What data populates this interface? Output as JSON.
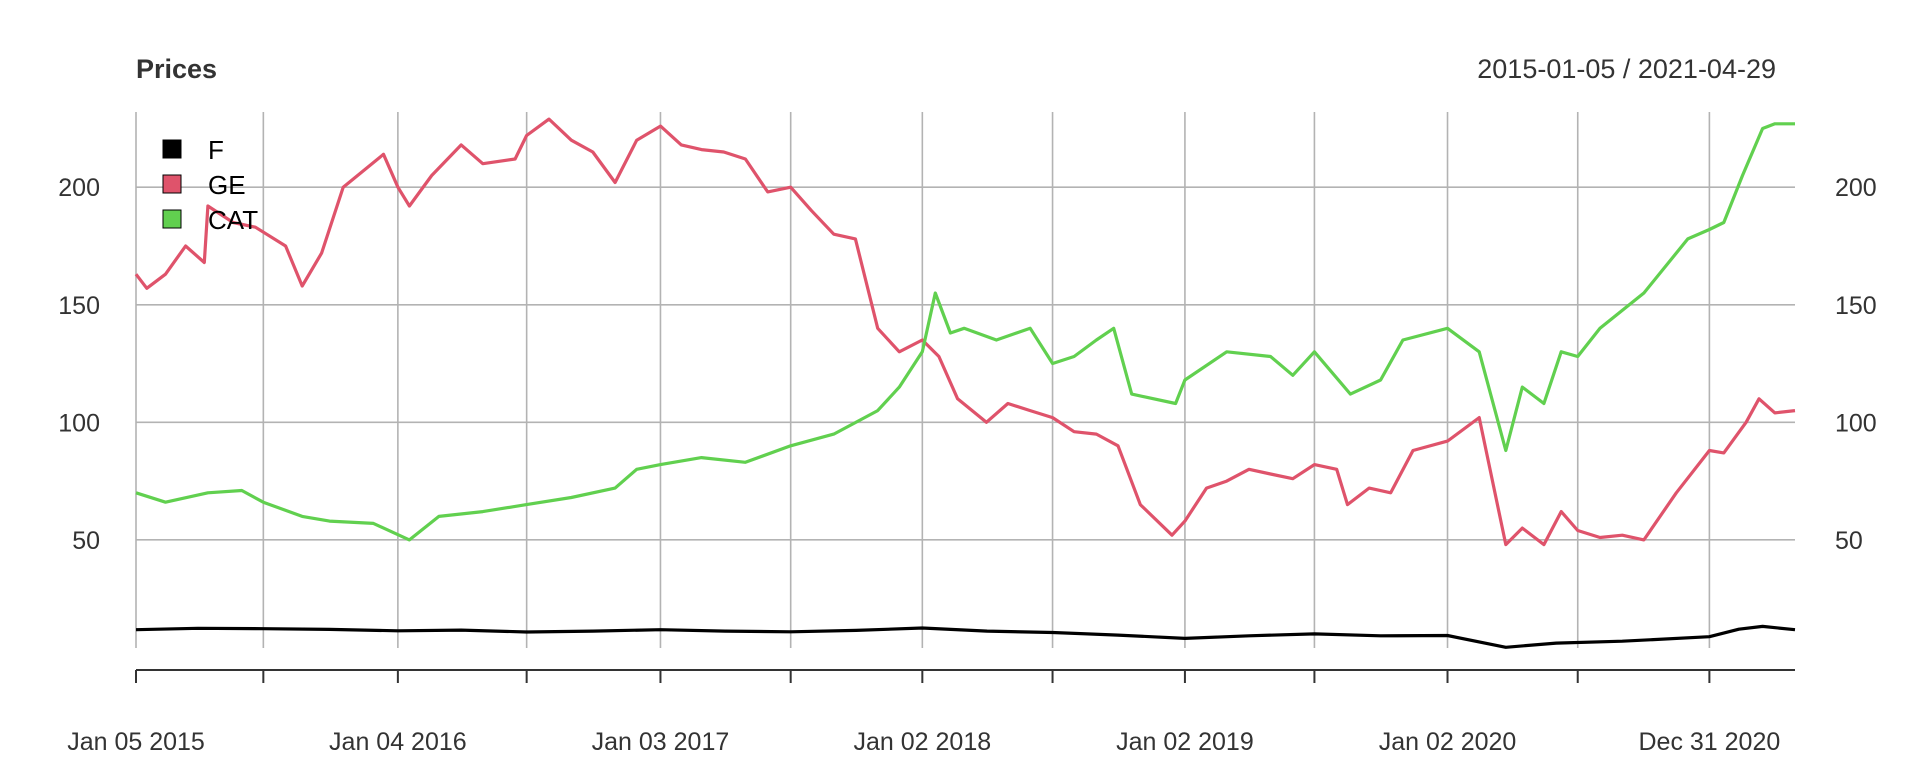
{
  "chart_data": {
    "type": "line",
    "title": "Prices",
    "date_range": "2015-01-05 / 2021-04-29",
    "x_range": [
      "2015-01-05",
      "2021-04-29"
    ],
    "x_ticks": [
      {
        "date": "2015-01-05",
        "label": "Jan 05 2015"
      },
      {
        "date": "2015-07-01",
        "label": ""
      },
      {
        "date": "2016-01-04",
        "label": "Jan 04 2016"
      },
      {
        "date": "2016-07-01",
        "label": ""
      },
      {
        "date": "2017-01-03",
        "label": "Jan 03 2017"
      },
      {
        "date": "2017-07-03",
        "label": ""
      },
      {
        "date": "2018-01-02",
        "label": "Jan 02 2018"
      },
      {
        "date": "2018-07-02",
        "label": ""
      },
      {
        "date": "2019-01-02",
        "label": "Jan 02 2019"
      },
      {
        "date": "2019-07-01",
        "label": ""
      },
      {
        "date": "2020-01-02",
        "label": "Jan 02 2020"
      },
      {
        "date": "2020-07-01",
        "label": ""
      },
      {
        "date": "2020-12-31",
        "label": "Dec 31 2020"
      }
    ],
    "y_ticks": [
      50,
      100,
      150,
      200
    ],
    "ylim": [
      4,
      232
    ],
    "grid": true,
    "legend_position": "top-left",
    "series": [
      {
        "name": "F",
        "color": "#000000",
        "points": [
          [
            "2015-01-05",
            11.8
          ],
          [
            "2015-04-01",
            12.4
          ],
          [
            "2015-07-01",
            12.2
          ],
          [
            "2015-10-01",
            11.9
          ],
          [
            "2016-01-04",
            11.3
          ],
          [
            "2016-04-01",
            11.6
          ],
          [
            "2016-07-01",
            10.8
          ],
          [
            "2016-10-01",
            11.2
          ],
          [
            "2017-01-03",
            11.8
          ],
          [
            "2017-04-03",
            11.2
          ],
          [
            "2017-07-03",
            10.9
          ],
          [
            "2017-10-02",
            11.5
          ],
          [
            "2018-01-02",
            12.5
          ],
          [
            "2018-04-02",
            11.2
          ],
          [
            "2018-07-02",
            10.6
          ],
          [
            "2018-10-01",
            9.5
          ],
          [
            "2019-01-02",
            8.1
          ],
          [
            "2019-04-01",
            9.2
          ],
          [
            "2019-07-01",
            10.0
          ],
          [
            "2019-10-01",
            9.2
          ],
          [
            "2020-01-02",
            9.3
          ],
          [
            "2020-03-23",
            4.3
          ],
          [
            "2020-06-01",
            6.1
          ],
          [
            "2020-09-01",
            6.9
          ],
          [
            "2020-12-31",
            8.8
          ],
          [
            "2021-02-10",
            12.0
          ],
          [
            "2021-03-15",
            13.2
          ],
          [
            "2021-04-29",
            11.8
          ]
        ]
      },
      {
        "name": "GE",
        "color": "#df536b",
        "points": [
          [
            "2015-01-05",
            163
          ],
          [
            "2015-01-20",
            157
          ],
          [
            "2015-02-15",
            163
          ],
          [
            "2015-03-15",
            175
          ],
          [
            "2015-04-10",
            168
          ],
          [
            "2015-04-15",
            192
          ],
          [
            "2015-05-20",
            185
          ],
          [
            "2015-06-20",
            183
          ],
          [
            "2015-08-01",
            175
          ],
          [
            "2015-08-24",
            158
          ],
          [
            "2015-09-20",
            172
          ],
          [
            "2015-10-20",
            200
          ],
          [
            "2015-12-15",
            214
          ],
          [
            "2016-01-04",
            200
          ],
          [
            "2016-01-20",
            192
          ],
          [
            "2016-02-20",
            205
          ],
          [
            "2016-04-01",
            218
          ],
          [
            "2016-05-01",
            210
          ],
          [
            "2016-06-15",
            212
          ],
          [
            "2016-07-01",
            222
          ],
          [
            "2016-08-01",
            229
          ],
          [
            "2016-09-01",
            220
          ],
          [
            "2016-10-01",
            215
          ],
          [
            "2016-11-01",
            202
          ],
          [
            "2016-12-01",
            220
          ],
          [
            "2017-01-03",
            226
          ],
          [
            "2017-02-01",
            218
          ],
          [
            "2017-03-01",
            216
          ],
          [
            "2017-04-01",
            215
          ],
          [
            "2017-05-01",
            212
          ],
          [
            "2017-06-01",
            198
          ],
          [
            "2017-07-03",
            200
          ],
          [
            "2017-08-01",
            190
          ],
          [
            "2017-09-01",
            180
          ],
          [
            "2017-10-01",
            178
          ],
          [
            "2017-11-01",
            140
          ],
          [
            "2017-12-01",
            130
          ],
          [
            "2018-01-02",
            135
          ],
          [
            "2018-01-25",
            128
          ],
          [
            "2018-02-20",
            110
          ],
          [
            "2018-04-01",
            100
          ],
          [
            "2018-05-01",
            108
          ],
          [
            "2018-06-01",
            105
          ],
          [
            "2018-07-02",
            102
          ],
          [
            "2018-08-01",
            96
          ],
          [
            "2018-09-01",
            95
          ],
          [
            "2018-10-01",
            90
          ],
          [
            "2018-11-01",
            65
          ],
          [
            "2018-12-15",
            52
          ],
          [
            "2019-01-02",
            58
          ],
          [
            "2019-02-01",
            72
          ],
          [
            "2019-03-01",
            75
          ],
          [
            "2019-04-01",
            80
          ],
          [
            "2019-05-01",
            78
          ],
          [
            "2019-06-01",
            76
          ],
          [
            "2019-07-01",
            82
          ],
          [
            "2019-08-01",
            80
          ],
          [
            "2019-08-16",
            65
          ],
          [
            "2019-09-15",
            72
          ],
          [
            "2019-10-15",
            70
          ],
          [
            "2019-11-15",
            88
          ],
          [
            "2020-01-02",
            92
          ],
          [
            "2020-02-15",
            102
          ],
          [
            "2020-03-23",
            48
          ],
          [
            "2020-04-15",
            55
          ],
          [
            "2020-05-15",
            48
          ],
          [
            "2020-06-08",
            62
          ],
          [
            "2020-07-01",
            54
          ],
          [
            "2020-08-01",
            51
          ],
          [
            "2020-09-01",
            52
          ],
          [
            "2020-10-01",
            50
          ],
          [
            "2020-11-15",
            70
          ],
          [
            "2020-12-31",
            88
          ],
          [
            "2021-01-20",
            87
          ],
          [
            "2021-02-20",
            100
          ],
          [
            "2021-03-10",
            110
          ],
          [
            "2021-04-01",
            104
          ],
          [
            "2021-04-29",
            105
          ]
        ]
      },
      {
        "name": "CAT",
        "color": "#61d04f",
        "points": [
          [
            "2015-01-05",
            70
          ],
          [
            "2015-02-15",
            66
          ],
          [
            "2015-04-15",
            70
          ],
          [
            "2015-06-01",
            71
          ],
          [
            "2015-07-01",
            66
          ],
          [
            "2015-08-24",
            60
          ],
          [
            "2015-10-01",
            58
          ],
          [
            "2015-12-01",
            57
          ],
          [
            "2016-01-20",
            50
          ],
          [
            "2016-03-01",
            60
          ],
          [
            "2016-05-01",
            62
          ],
          [
            "2016-07-01",
            65
          ],
          [
            "2016-09-01",
            68
          ],
          [
            "2016-11-01",
            72
          ],
          [
            "2016-12-01",
            80
          ],
          [
            "2017-01-03",
            82
          ],
          [
            "2017-03-01",
            85
          ],
          [
            "2017-05-01",
            83
          ],
          [
            "2017-07-03",
            90
          ],
          [
            "2017-09-01",
            95
          ],
          [
            "2017-11-01",
            105
          ],
          [
            "2017-12-01",
            115
          ],
          [
            "2018-01-02",
            130
          ],
          [
            "2018-01-20",
            155
          ],
          [
            "2018-02-10",
            138
          ],
          [
            "2018-03-01",
            140
          ],
          [
            "2018-04-15",
            135
          ],
          [
            "2018-06-01",
            140
          ],
          [
            "2018-07-02",
            125
          ],
          [
            "2018-08-01",
            128
          ],
          [
            "2018-09-01",
            135
          ],
          [
            "2018-09-25",
            140
          ],
          [
            "2018-10-20",
            112
          ],
          [
            "2018-12-20",
            108
          ],
          [
            "2019-01-02",
            118
          ],
          [
            "2019-03-01",
            130
          ],
          [
            "2019-05-01",
            128
          ],
          [
            "2019-06-01",
            120
          ],
          [
            "2019-07-01",
            130
          ],
          [
            "2019-08-20",
            112
          ],
          [
            "2019-10-01",
            118
          ],
          [
            "2019-11-01",
            135
          ],
          [
            "2020-01-02",
            140
          ],
          [
            "2020-02-15",
            130
          ],
          [
            "2020-03-23",
            88
          ],
          [
            "2020-04-15",
            115
          ],
          [
            "2020-05-15",
            108
          ],
          [
            "2020-06-08",
            130
          ],
          [
            "2020-07-01",
            128
          ],
          [
            "2020-08-01",
            140
          ],
          [
            "2020-10-01",
            155
          ],
          [
            "2020-12-01",
            178
          ],
          [
            "2020-12-31",
            182
          ],
          [
            "2021-01-20",
            185
          ],
          [
            "2021-02-15",
            205
          ],
          [
            "2021-03-15",
            225
          ],
          [
            "2021-04-01",
            227
          ],
          [
            "2021-04-29",
            227
          ]
        ]
      }
    ]
  }
}
